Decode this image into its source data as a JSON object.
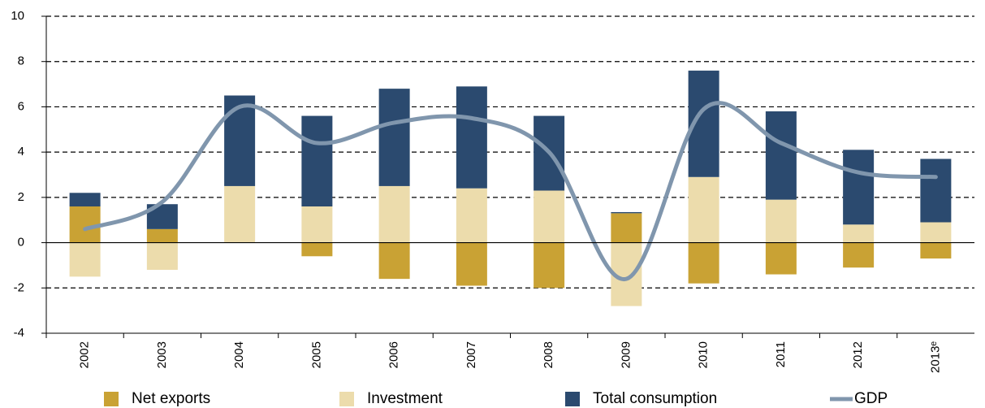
{
  "chart_data": {
    "type": "bar",
    "categories": [
      "2002",
      "2003",
      "2004",
      "2005",
      "2006",
      "2007",
      "2008",
      "2009",
      "2010",
      "2011",
      "2012",
      "2013ᵉ"
    ],
    "series": [
      {
        "name": "Net exports",
        "color": "#c9a234",
        "values": [
          1.6,
          0.6,
          0,
          -0.6,
          -1.6,
          -1.9,
          -2.0,
          1.3,
          -1.8,
          -1.4,
          -1.1,
          -0.7
        ]
      },
      {
        "name": "Investment",
        "color": "#ecdcac",
        "values": [
          -1.5,
          -1.2,
          2.5,
          1.6,
          2.5,
          2.4,
          2.3,
          -2.8,
          2.9,
          1.9,
          0.8,
          0.9
        ]
      },
      {
        "name": "Total consumption",
        "color": "#2b4a6f",
        "values": [
          0.6,
          1.1,
          4.0,
          4.0,
          4.3,
          4.5,
          3.3,
          0.05,
          4.7,
          3.9,
          3.3,
          2.8
        ]
      },
      {
        "name": "GDP",
        "color": "#8096ad",
        "type": "line",
        "values": [
          0.6,
          1.8,
          6.0,
          4.4,
          5.3,
          5.5,
          4.0,
          -1.6,
          5.9,
          4.4,
          3.1,
          2.9
        ]
      }
    ],
    "ylim": [
      -4,
      10
    ],
    "yticks": [
      -4,
      -2,
      0,
      2,
      4,
      6,
      8,
      10
    ],
    "grid": true
  }
}
